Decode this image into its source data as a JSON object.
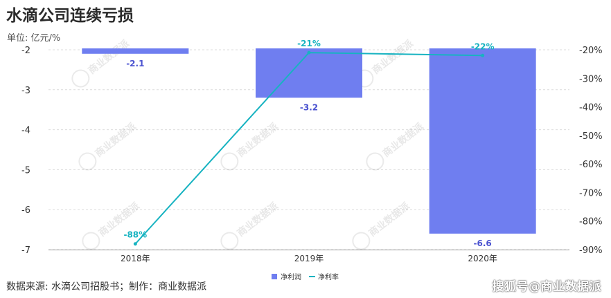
{
  "title": "水滴公司连续亏损",
  "unit_label": "单位: 亿元/%",
  "source": "数据来源: 水滴公司招股书；制作：商业数据派",
  "brand": "搜狐号@商业数据派",
  "watermark_text": "商业数据派",
  "colors": {
    "bar": "#6f7ef0",
    "line": "#17b3c1",
    "bar_label": "#4a52d0",
    "line_label": "#17b3c1"
  },
  "chart_data": {
    "type": "bar",
    "categories": [
      "2018年",
      "2019年",
      "2020年"
    ],
    "series": [
      {
        "name": "净利润",
        "type": "bar",
        "axis": "left",
        "values": [
          -2.1,
          -3.2,
          -6.6
        ],
        "labels": [
          "-2.1",
          "-3.2",
          "-6.6"
        ]
      },
      {
        "name": "净利率",
        "type": "line",
        "axis": "right",
        "values": [
          -88,
          -21,
          -22
        ],
        "labels": [
          "-88%",
          "-21%",
          "-22%"
        ]
      }
    ],
    "y_left": {
      "min": -7,
      "max": -2,
      "ticks": [
        "-2",
        "-3",
        "-4",
        "-5",
        "-6",
        "-7"
      ]
    },
    "y_right": {
      "min": -90,
      "max": -20,
      "ticks": [
        "-20%",
        "-30%",
        "-40%",
        "-50%",
        "-60%",
        "-70%",
        "-80%",
        "-90%"
      ]
    },
    "grid": true,
    "legend_position": "bottom"
  }
}
